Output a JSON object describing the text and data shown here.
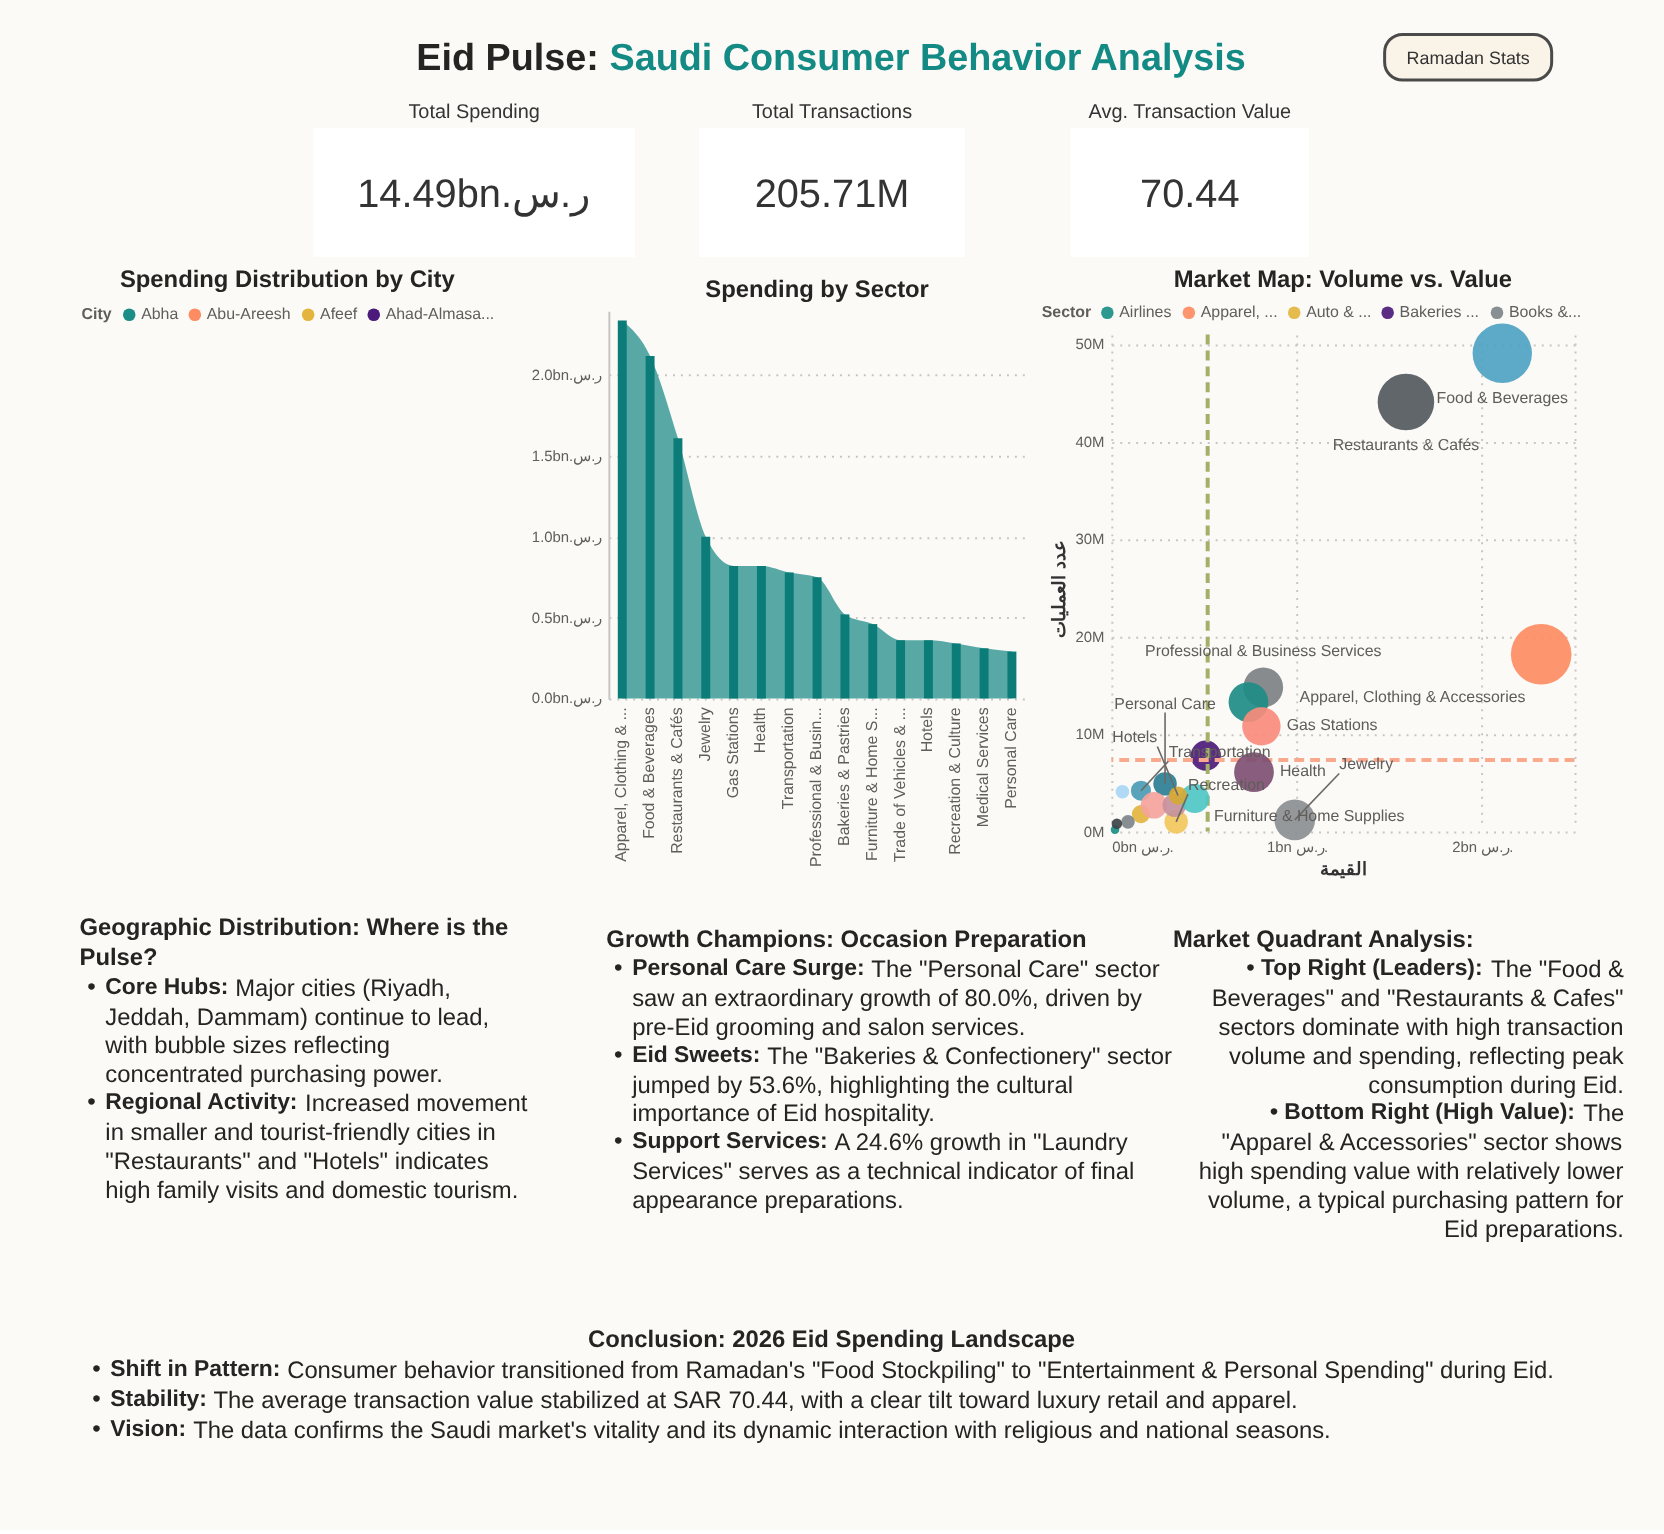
{
  "chart_data": [
    {
      "type": "other",
      "title": "Eid Pulse: Saudi Consumer Behavior Analysis",
      "categories": [
        "Total Spending",
        "Total Transactions",
        "Avg. Transaction Value"
      ],
      "value_labels": [
        "14.49bn.ر.س",
        "205.71M",
        "70.44"
      ],
      "annotations": [
        "Ramadan Stats"
      ]
    },
    {
      "type": "other",
      "title": "Spending Distribution by City",
      "legend_title": "City",
      "legend": "top left",
      "series": [
        {
          "name": "Abha",
          "color": "#1b8f86"
        },
        {
          "name": "Abu-Areesh",
          "color": "#fd8c62"
        },
        {
          "name": "Afeef",
          "color": "#e3b53f"
        },
        {
          "name": "Ahad-Almasa...",
          "color": "#4c1a7a"
        }
      ]
    },
    {
      "type": "bar",
      "title": "Spending by Sector",
      "categories": [
        "Apparel, Clothing & ...",
        "Food & Beverages",
        "Restaurants & Cafés",
        "Jewelry",
        "Gas Stations",
        "Health",
        "Transportation",
        "Professional & Busin...",
        "Bakeries & Pastries",
        "Furniture & Home S...",
        "Trade of Vehicles & ...",
        "Hotels",
        "Recreation & Culture",
        "Medical Services",
        "Personal Care"
      ],
      "series": [
        {
          "type": "area",
          "color": "#58a9a5",
          "values": [
            2.34,
            2.12,
            1.61,
            1.0,
            0.82,
            0.82,
            0.78,
            0.75,
            0.52,
            0.46,
            0.36,
            0.36,
            0.34,
            0.31,
            0.29
          ]
        },
        {
          "type": "bar",
          "color": "#0b7c77",
          "values": [
            2.34,
            2.12,
            1.61,
            1.0,
            0.82,
            0.82,
            0.78,
            0.75,
            0.52,
            0.46,
            0.36,
            0.36,
            0.34,
            0.31,
            0.29
          ]
        }
      ],
      "ylim": [
        0,
        2.4
      ],
      "yticks": [
        {
          "value": 0,
          "label": "0.0bn.ر.س"
        },
        {
          "value": 0.5,
          "label": "0.5bn.ر.س"
        },
        {
          "value": 1,
          "label": "1.0bn.ر.س"
        },
        {
          "value": 1.5,
          "label": "1.5bn.ر.س"
        },
        {
          "value": 2,
          "label": "2.0bn.ر.س"
        }
      ],
      "grid": "y"
    },
    {
      "type": "bubble",
      "title": "Market Map: Volume vs. Value",
      "xlabel": "القيمة",
      "ylabel": "عدد العمليات",
      "legend_title": "Sector",
      "legend": "top left",
      "grid": true,
      "xlim": [
        0,
        2.5
      ],
      "ylim": [
        0,
        50
      ],
      "xticks": [
        {
          "value": 0,
          "label": "0bn ر.س."
        },
        {
          "value": 1,
          "label": "1bn ر.س."
        },
        {
          "value": 2,
          "label": "2bn ر.س."
        },
        {
          "value": 2.5,
          "label": null
        }
      ],
      "yticks": [
        {
          "value": 0,
          "label": "0M"
        },
        {
          "value": 10,
          "label": "10M"
        },
        {
          "value": 20,
          "label": "20M"
        },
        {
          "value": 30,
          "label": "30M"
        },
        {
          "value": 40,
          "label": "40M"
        },
        {
          "value": 50,
          "label": "50M"
        }
      ],
      "series": [
        {
          "name": "Airlines",
          "color": "#1a8f86",
          "x": [
            0.02
          ],
          "values": [
            0.2
          ],
          "sizes": [
            0.02
          ]
        },
        {
          "name": "Apparel, ...",
          "color": "#fd8c62",
          "x": [
            2.32
          ],
          "values": [
            18.2
          ],
          "sizes": [
            1.0
          ]
        },
        {
          "name": "Auto & ...",
          "color": "#e3b53f",
          "x": [
            0.16
          ],
          "values": [
            1.8
          ],
          "sizes": [
            0.09
          ]
        },
        {
          "name": "Bakeries ...",
          "color": "#4c1a7a",
          "x": [
            0.51
          ],
          "values": [
            7.8
          ],
          "sizes": [
            0.25
          ]
        },
        {
          "name": "Books &...",
          "color": "#7d8589",
          "x": [
            0.09
          ],
          "values": [
            1.0
          ],
          "sizes": [
            0.05
          ]
        },
        {
          "colors": [
            "#4fa3c3",
            "#54595e",
            "#7d8184",
            "#1e8c84",
            "#f88b7c",
            "#7e4f72",
            "#8b8f92",
            "#a9d6f5",
            "#4b9cb4",
            "#2b7f95",
            "#f4a39c",
            "#f2c75c",
            "#c5919c",
            "#4ec7c4",
            "#d6a935",
            "#3e4347"
          ],
          "x": [
            2.11,
            1.59,
            0.82,
            0.74,
            0.81,
            0.77,
            0.99,
            0.06,
            0.16,
            0.29,
            0.23,
            0.35,
            0.34,
            0.45,
            0.36,
            0.03
          ],
          "values": [
            49.1,
            44.1,
            14.8,
            13.3,
            10.8,
            6.1,
            1.2,
            4.1,
            4.2,
            4.9,
            2.7,
            1.0,
            2.7,
            3.4,
            3.7,
            0.8
          ],
          "sizes": [
            0.96,
            0.87,
            0.43,
            0.43,
            0.4,
            0.43,
            0.45,
            0.05,
            0.11,
            0.15,
            0.19,
            0.15,
            0.15,
            0.23,
            0.09,
            0.03
          ]
        }
      ],
      "ref_lines": [
        {
          "axis": "x",
          "value": 0.52,
          "color": "#a4b06a",
          "line_style": "dashed"
        },
        {
          "axis": "y",
          "value": 7.35,
          "color": "#f9a98e",
          "line_style": "dashed"
        }
      ],
      "annotations": [
        {
          "text": "Food & Beverages",
          "x": 2.11,
          "y": 49.1
        },
        {
          "text": "Restaurants & Cafés",
          "x": 1.59,
          "y": 44.1
        },
        {
          "text": "Apparel, Clothing & Accessories",
          "x": 2.32,
          "y": 18.2
        },
        {
          "text": "Professional & Business Services",
          "x": 0.82,
          "y": 14.8
        },
        {
          "text": "Gas Stations",
          "x": 0.81,
          "y": 10.8
        },
        {
          "text": "Health",
          "x": 0.77,
          "y": 6.1
        },
        {
          "text": "Jewelry",
          "x": 0.99,
          "y": 1.2
        },
        {
          "text": "Furniture & Home Supplies",
          "x": 0.45,
          "y": 3.4
        },
        {
          "text": "Recreation",
          "x": 0.35,
          "y": 1.0
        },
        {
          "text": "Personal Care",
          "x": 0.29,
          "y": 4.9
        },
        {
          "text": "Transportation",
          "x": 0.16,
          "y": 4.2
        },
        {
          "text": "Hotels",
          "x": 0.36,
          "y": 3.7
        }
      ]
    },
    {
      "type": "other",
      "title": "Geographic Distribution: Where is the Pulse?",
      "annotations": [
        "• Core Hubs: Major cities (Riyadh, Jeddah, Dammam) continue to lead, with bubble sizes reflecting concentrated purchasing power.",
        "• Regional Activity: Increased movement in smaller and tourist-friendly cities in \"Restaurants\" and \"Hotels\" indicates high family visits and domestic tourism."
      ]
    },
    {
      "type": "other",
      "title": "Growth Champions: Occasion Preparation",
      "annotations": [
        "• Personal Care Surge: The \"Personal Care\" sector saw an extraordinary growth of 80.0%, driven by pre-Eid grooming and salon services.",
        "• Eid Sweets: The \"Bakeries & Confectionery\" sector jumped by 53.6%, highlighting the cultural importance of Eid hospitality.",
        "• Support Services: A 24.6% growth in \"Laundry Services\" serves as a technical indicator of final appearance preparations."
      ]
    },
    {
      "type": "other",
      "title": "Market Quadrant Analysis:",
      "annotations": [
        "• Top Right (Leaders): The \"Food & Beverages\" and \"Restaurants & Cafes\" sectors dominate with high transaction volume and spending, reflecting peak consumption during Eid.",
        "• Bottom Right (High Value): The \"Apparel & Accessories\" sector shows high spending value with relatively lower volume, a typical purchasing pattern for Eid preparations."
      ]
    },
    {
      "type": "other",
      "title": "Conclusion: 2026 Eid Spending Landscape",
      "annotations": [
        "• Shift in Pattern: Consumer behavior transitioned from Ramadan's \"Food Stockpiling\" to \"Entertainment & Personal Spending\" during Eid.",
        "• Stability: The average transaction value stabilized at SAR 70.44, with a clear tilt toward luxury retail and apparel.",
        "• Vision: The data confirms the Saudi market's vitality and its dynamic interaction with religious and national seasons."
      ]
    }
  ]
}
